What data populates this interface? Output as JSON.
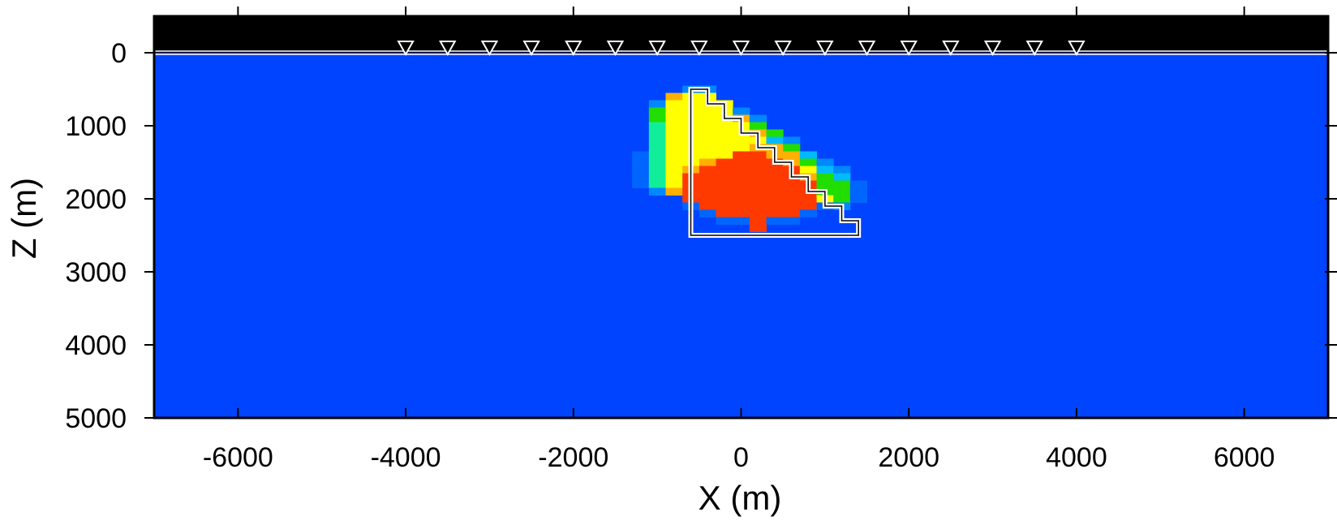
{
  "chart_data": {
    "type": "heatmap",
    "title": "",
    "xlabel": "X (m)",
    "ylabel": "Z (m)",
    "xlim": [
      -7000,
      7000
    ],
    "ylim": [
      -500,
      5000
    ],
    "y_inverted": true,
    "x_ticks": [
      -6000,
      -4000,
      -2000,
      0,
      2000,
      4000,
      6000
    ],
    "x_tick_labels": [
      "-6000",
      "-4000",
      "-2000",
      "0",
      "2000",
      "4000",
      "6000"
    ],
    "y_ticks": [
      0,
      1000,
      2000,
      3000,
      4000,
      5000
    ],
    "y_tick_labels": [
      "0",
      "1000",
      "2000",
      "3000",
      "4000",
      "5000"
    ],
    "grid": false,
    "colors": {
      "background_medium": "#0044ff",
      "air_layer": "#000000",
      "receiver_marker": "#ffffff",
      "outline": "#ffffff",
      "anomaly_red": "#ff3a00",
      "anomaly_orange": "#ffb000",
      "anomaly_yellow": "#ffff00",
      "anomaly_green": "#22dd00",
      "anomaly_teal": "#11ee99",
      "anomaly_cyan": "#00bbff"
    },
    "receivers_x": [
      -4000,
      -3500,
      -3000,
      -2500,
      -2000,
      -1500,
      -1000,
      -500,
      0,
      500,
      1000,
      1500,
      2000,
      2500,
      3000,
      3500,
      4000
    ],
    "receiver_z": 0,
    "true_body_outline": [
      [
        -600,
        500
      ],
      [
        -400,
        500
      ],
      [
        -400,
        700
      ],
      [
        -200,
        700
      ],
      [
        -200,
        900
      ],
      [
        0,
        900
      ],
      [
        0,
        1100
      ],
      [
        200,
        1100
      ],
      [
        200,
        1300
      ],
      [
        400,
        1300
      ],
      [
        400,
        1500
      ],
      [
        600,
        1500
      ],
      [
        600,
        1700
      ],
      [
        800,
        1700
      ],
      [
        800,
        1900
      ],
      [
        1000,
        1900
      ],
      [
        1000,
        2100
      ],
      [
        1200,
        2100
      ],
      [
        1200,
        2300
      ],
      [
        1400,
        2300
      ],
      [
        1400,
        2500
      ],
      [
        -600,
        2500
      ]
    ],
    "anomaly_cells": {
      "cell_size": [
        200,
        100
      ],
      "cells": [
        [
          -1200,
          1400,
          "#0066ff"
        ],
        [
          -1200,
          1500,
          "#0066ff"
        ],
        [
          -1200,
          1600,
          "#0066ff"
        ],
        [
          -1200,
          1700,
          "#0066ff"
        ],
        [
          -1200,
          1800,
          "#0066ff"
        ],
        [
          -1000,
          700,
          "#0088ff"
        ],
        [
          -1000,
          800,
          "#22dd00"
        ],
        [
          -1000,
          900,
          "#22dd00"
        ],
        [
          -1000,
          1000,
          "#11ee99"
        ],
        [
          -1000,
          1100,
          "#11ee99"
        ],
        [
          -1000,
          1200,
          "#11ee99"
        ],
        [
          -1000,
          1300,
          "#11ee99"
        ],
        [
          -1000,
          1400,
          "#11ee99"
        ],
        [
          -1000,
          1500,
          "#11ee99"
        ],
        [
          -1000,
          1600,
          "#11ee99"
        ],
        [
          -1000,
          1700,
          "#11ee99"
        ],
        [
          -1000,
          1800,
          "#11ee99"
        ],
        [
          -1000,
          1900,
          "#0088ff"
        ],
        [
          -800,
          600,
          "#ffb000"
        ],
        [
          -800,
          700,
          "#ffff00"
        ],
        [
          -800,
          800,
          "#ffff00"
        ],
        [
          -800,
          900,
          "#ffff00"
        ],
        [
          -800,
          1000,
          "#ffff00"
        ],
        [
          -800,
          1100,
          "#ffff00"
        ],
        [
          -800,
          1200,
          "#ffff00"
        ],
        [
          -800,
          1300,
          "#ffff00"
        ],
        [
          -800,
          1400,
          "#ffff00"
        ],
        [
          -800,
          1500,
          "#ffff00"
        ],
        [
          -800,
          1600,
          "#ffff00"
        ],
        [
          -800,
          1700,
          "#ffff00"
        ],
        [
          -800,
          1800,
          "#ffff00"
        ],
        [
          -800,
          1900,
          "#ffb000"
        ],
        [
          -600,
          500,
          "#0088ff"
        ],
        [
          -600,
          600,
          "#ffff00"
        ],
        [
          -600,
          700,
          "#ffff00"
        ],
        [
          -600,
          800,
          "#ffff00"
        ],
        [
          -600,
          900,
          "#ffff00"
        ],
        [
          -600,
          1000,
          "#ffff00"
        ],
        [
          -600,
          1100,
          "#ffff00"
        ],
        [
          -600,
          1200,
          "#ffff00"
        ],
        [
          -600,
          1300,
          "#ffff00"
        ],
        [
          -600,
          1400,
          "#ffff00"
        ],
        [
          -600,
          1500,
          "#ffff00"
        ],
        [
          -600,
          1600,
          "#ffb000"
        ],
        [
          -600,
          1700,
          "#ff3a00"
        ],
        [
          -600,
          1800,
          "#ff3a00"
        ],
        [
          -600,
          1900,
          "#ff3a00"
        ],
        [
          -600,
          2000,
          "#ff3a00"
        ],
        [
          -600,
          2100,
          "#0066ff"
        ],
        [
          -400,
          500,
          "#0088ff"
        ],
        [
          -400,
          600,
          "#ffff00"
        ],
        [
          -400,
          700,
          "#ffff00"
        ],
        [
          -400,
          800,
          "#ffff00"
        ],
        [
          -400,
          900,
          "#ffff00"
        ],
        [
          -400,
          1000,
          "#ffff00"
        ],
        [
          -400,
          1100,
          "#ffff00"
        ],
        [
          -400,
          1200,
          "#ffff00"
        ],
        [
          -400,
          1300,
          "#ffff00"
        ],
        [
          -400,
          1400,
          "#ffff00"
        ],
        [
          -400,
          1500,
          "#ffb000"
        ],
        [
          -400,
          1600,
          "#ff3a00"
        ],
        [
          -400,
          1700,
          "#ff3a00"
        ],
        [
          -400,
          1800,
          "#ff3a00"
        ],
        [
          -400,
          1900,
          "#ff3a00"
        ],
        [
          -400,
          2000,
          "#ff3a00"
        ],
        [
          -400,
          2100,
          "#ff3a00"
        ],
        [
          -400,
          2200,
          "#0066ff"
        ],
        [
          -200,
          700,
          "#ffff00"
        ],
        [
          -200,
          800,
          "#ffff00"
        ],
        [
          -200,
          900,
          "#ffff00"
        ],
        [
          -200,
          1000,
          "#ffff00"
        ],
        [
          -200,
          1100,
          "#ffff00"
        ],
        [
          -200,
          1200,
          "#ffff00"
        ],
        [
          -200,
          1300,
          "#ffff00"
        ],
        [
          -200,
          1400,
          "#ffff00"
        ],
        [
          -200,
          1500,
          "#ff3a00"
        ],
        [
          -200,
          1600,
          "#ff3a00"
        ],
        [
          -200,
          1700,
          "#ff3a00"
        ],
        [
          -200,
          1800,
          "#ff3a00"
        ],
        [
          -200,
          1900,
          "#ff3a00"
        ],
        [
          -200,
          2000,
          "#ff3a00"
        ],
        [
          -200,
          2100,
          "#ff3a00"
        ],
        [
          -200,
          2200,
          "#ff3a00"
        ],
        [
          -200,
          2300,
          "#0066ff"
        ],
        [
          0,
          800,
          "#0088ff"
        ],
        [
          0,
          900,
          "#ffb000"
        ],
        [
          0,
          1000,
          "#ffff00"
        ],
        [
          0,
          1100,
          "#ffff00"
        ],
        [
          0,
          1200,
          "#ffff00"
        ],
        [
          0,
          1300,
          "#ffff00"
        ],
        [
          0,
          1400,
          "#ff3a00"
        ],
        [
          0,
          1500,
          "#ff3a00"
        ],
        [
          0,
          1600,
          "#ff3a00"
        ],
        [
          0,
          1700,
          "#ff3a00"
        ],
        [
          0,
          1800,
          "#ff3a00"
        ],
        [
          0,
          1900,
          "#ff3a00"
        ],
        [
          0,
          2000,
          "#ff3a00"
        ],
        [
          0,
          2100,
          "#ff3a00"
        ],
        [
          0,
          2200,
          "#ff3a00"
        ],
        [
          0,
          2300,
          "#0066ff"
        ],
        [
          200,
          900,
          "#0088ff"
        ],
        [
          200,
          1000,
          "#22dd00"
        ],
        [
          200,
          1100,
          "#ffb000"
        ],
        [
          200,
          1200,
          "#ffff00"
        ],
        [
          200,
          1300,
          "#ffb000"
        ],
        [
          200,
          1400,
          "#ff3a00"
        ],
        [
          200,
          1500,
          "#ff3a00"
        ],
        [
          200,
          1600,
          "#ff3a00"
        ],
        [
          200,
          1700,
          "#ff3a00"
        ],
        [
          200,
          1800,
          "#ff3a00"
        ],
        [
          200,
          1900,
          "#ff3a00"
        ],
        [
          200,
          2000,
          "#ff3a00"
        ],
        [
          200,
          2100,
          "#ff3a00"
        ],
        [
          200,
          2200,
          "#ff3a00"
        ],
        [
          200,
          2300,
          "#ff3a00"
        ],
        [
          200,
          2400,
          "#ff3a00"
        ],
        [
          400,
          1100,
          "#22dd00"
        ],
        [
          400,
          1200,
          "#00bbff"
        ],
        [
          400,
          1300,
          "#ffb000"
        ],
        [
          400,
          1400,
          "#ffb000"
        ],
        [
          400,
          1500,
          "#ff3a00"
        ],
        [
          400,
          1600,
          "#ff3a00"
        ],
        [
          400,
          1700,
          "#ff3a00"
        ],
        [
          400,
          1800,
          "#ff3a00"
        ],
        [
          400,
          1900,
          "#ff3a00"
        ],
        [
          400,
          2000,
          "#ff3a00"
        ],
        [
          400,
          2100,
          "#ff3a00"
        ],
        [
          400,
          2200,
          "#ff3a00"
        ],
        [
          400,
          2300,
          "#0066ff"
        ],
        [
          600,
          1200,
          "#0088ff"
        ],
        [
          600,
          1300,
          "#22dd00"
        ],
        [
          600,
          1400,
          "#ffb000"
        ],
        [
          600,
          1500,
          "#ffb000"
        ],
        [
          600,
          1600,
          "#ff3a00"
        ],
        [
          600,
          1700,
          "#ff3a00"
        ],
        [
          600,
          1800,
          "#ff3a00"
        ],
        [
          600,
          1900,
          "#ff3a00"
        ],
        [
          600,
          2000,
          "#ff3a00"
        ],
        [
          600,
          2100,
          "#ff3a00"
        ],
        [
          600,
          2200,
          "#ff3a00"
        ],
        [
          600,
          2300,
          "#0066ff"
        ],
        [
          800,
          1400,
          "#00bbff"
        ],
        [
          800,
          1500,
          "#22dd00"
        ],
        [
          800,
          1600,
          "#ffff00"
        ],
        [
          800,
          1700,
          "#ffb000"
        ],
        [
          800,
          1800,
          "#ff3a00"
        ],
        [
          800,
          1900,
          "#ff3a00"
        ],
        [
          800,
          2000,
          "#ff3a00"
        ],
        [
          800,
          2100,
          "#ff3a00"
        ],
        [
          800,
          2200,
          "#0066ff"
        ],
        [
          1000,
          1500,
          "#0088ff"
        ],
        [
          1000,
          1600,
          "#00bbff"
        ],
        [
          1000,
          1700,
          "#22dd00"
        ],
        [
          1000,
          1800,
          "#22dd00"
        ],
        [
          1000,
          1900,
          "#22dd00"
        ],
        [
          1000,
          2000,
          "#ffff00"
        ],
        [
          1000,
          2100,
          "#0066ff"
        ],
        [
          1200,
          1600,
          "#0088ff"
        ],
        [
          1200,
          1700,
          "#00bbff"
        ],
        [
          1200,
          1800,
          "#22dd00"
        ],
        [
          1200,
          1900,
          "#22dd00"
        ],
        [
          1200,
          2000,
          "#22dd00"
        ],
        [
          1200,
          2100,
          "#0088ff"
        ],
        [
          1400,
          1800,
          "#0066ff"
        ],
        [
          1400,
          1900,
          "#0066ff"
        ],
        [
          1400,
          2000,
          "#0066ff"
        ]
      ]
    }
  }
}
